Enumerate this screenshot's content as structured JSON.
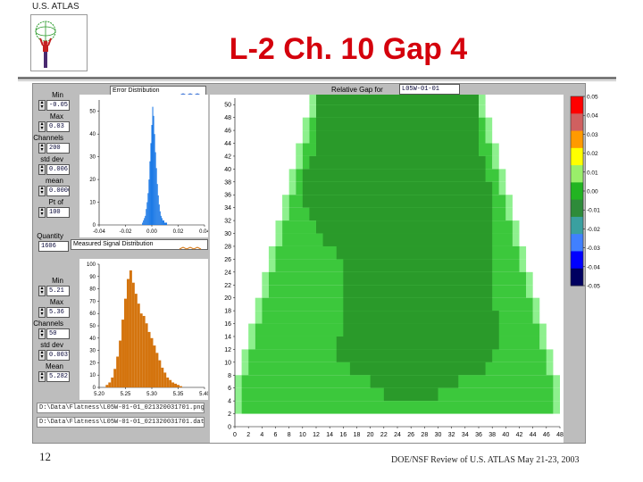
{
  "slide": {
    "logo_text": "U.S. ATLAS",
    "title": "L-2 Ch. 10 Gap 4",
    "page_number": "12",
    "footer": "DOE/NSF Review of U.S. ATLAS May 21-23, 2003"
  },
  "app": {
    "error_panel": {
      "legend": "Error Distribution",
      "controls": [
        {
          "label": "Min",
          "value": "-0.05"
        },
        {
          "label": "Max",
          "value": "0.03"
        },
        {
          "label": "Channels",
          "value": "200"
        },
        {
          "label": "std dev",
          "value": "0.006"
        },
        {
          "label": "mean",
          "value": "0.0000"
        },
        {
          "label": "Pt of Entry",
          "value": "100"
        }
      ]
    },
    "quantity": {
      "label": "Quantity",
      "value": "1606"
    },
    "signal_panel": {
      "legend": "Measured Signal Distribution",
      "controls": [
        {
          "label": "Min",
          "value": "5.21"
        },
        {
          "label": "Max",
          "value": "5.36"
        },
        {
          "label": "Channels",
          "value": "50"
        },
        {
          "label": "std dev",
          "value": "0.0037"
        },
        {
          "label": "Mean",
          "value": "5.282"
        }
      ]
    },
    "chamber": {
      "label": "Relative Gap for Chamber",
      "value": "L05W-01-01"
    },
    "paths": [
      "D:\\Data\\Flatness\\L05W-01-01_021320031701.png",
      "D:\\Data\\Flatness\\L05W-01-01_021320031701.dat"
    ]
  },
  "chart_data": [
    {
      "type": "bar",
      "title": "",
      "xlabel": "",
      "ylabel": "",
      "x_ticks": [
        "-0.04",
        "-0.02",
        "0.00",
        "0.02",
        "0.04"
      ],
      "y_ticks": [
        "0",
        "10",
        "20",
        "30",
        "40",
        "50"
      ],
      "xlim": [
        -0.04,
        0.04
      ],
      "ylim": [
        0,
        55
      ],
      "color": "#1a78e6",
      "categories": [
        -0.007,
        -0.0063,
        -0.0056,
        -0.0049,
        -0.0042,
        -0.0035,
        -0.0028,
        -0.0021,
        -0.0014,
        -0.0007,
        0.0,
        0.0007,
        0.0014,
        0.0021,
        0.0028,
        0.0035,
        0.0042,
        0.0049,
        0.0056,
        0.0063,
        0.007,
        0.0077,
        0.0084,
        0.0091,
        0.0098,
        0.0105,
        0.0112
      ],
      "values": [
        1,
        2,
        3,
        4,
        7,
        10,
        14,
        20,
        28,
        36,
        44,
        52,
        48,
        40,
        32,
        25,
        18,
        13,
        9,
        6,
        4,
        3,
        2,
        2,
        1,
        1,
        1
      ]
    },
    {
      "type": "bar",
      "title": "",
      "xlabel": "",
      "ylabel": "",
      "x_ticks": [
        "5.20",
        "5.25",
        "5.30",
        "5.35",
        "5.40"
      ],
      "y_ticks": [
        "0",
        "10",
        "20",
        "30",
        "40",
        "50",
        "60",
        "70",
        "80",
        "90",
        "100"
      ],
      "xlim": [
        5.2,
        5.4
      ],
      "ylim": [
        0,
        100
      ],
      "color": "#d4740e",
      "categories": [
        5.215,
        5.22,
        5.225,
        5.23,
        5.235,
        5.24,
        5.245,
        5.25,
        5.255,
        5.26,
        5.265,
        5.27,
        5.275,
        5.28,
        5.285,
        5.29,
        5.295,
        5.3,
        5.305,
        5.31,
        5.315,
        5.32,
        5.325,
        5.33,
        5.335,
        5.34,
        5.345,
        5.35,
        5.355
      ],
      "values": [
        2,
        4,
        8,
        15,
        25,
        38,
        55,
        72,
        88,
        95,
        85,
        76,
        68,
        60,
        58,
        52,
        45,
        40,
        34,
        28,
        22,
        16,
        12,
        8,
        6,
        4,
        3,
        2,
        1
      ]
    },
    {
      "type": "heatmap",
      "title": "",
      "xlabel": "",
      "ylabel": "",
      "x_ticks": [
        "0",
        "2",
        "4",
        "6",
        "8",
        "10",
        "12",
        "14",
        "16",
        "18",
        "20",
        "22",
        "24",
        "26",
        "28",
        "30",
        "32",
        "34",
        "36",
        "38",
        "40",
        "42",
        "44",
        "46",
        "48"
      ],
      "y_ticks": [
        "0",
        "2",
        "4",
        "6",
        "8",
        "10",
        "12",
        "14",
        "16",
        "18",
        "20",
        "22",
        "24",
        "26",
        "28",
        "30",
        "32",
        "34",
        "36",
        "38",
        "40",
        "42",
        "44",
        "46",
        "48",
        "50"
      ],
      "xlim": [
        0,
        48
      ],
      "ylim": [
        0,
        51
      ],
      "colorbar_ticks": [
        "0.05",
        "0.04",
        "0.03",
        "0.02",
        "0.01",
        "0.00",
        "-0.01",
        "-0.02",
        "-0.03",
        "-0.04",
        "-0.05"
      ],
      "colorbar_colors": [
        "#ff0000",
        "#d06060",
        "#ff9a00",
        "#ffff00",
        "#9aef6a",
        "#22b422",
        "#2e8b3a",
        "#3aa0a0",
        "#4080ff",
        "#0000ff",
        "#000060"
      ],
      "rows": [
        {
          "y": 50,
          "xmin": 12,
          "xmax": 36,
          "dark_min": 12,
          "dark_max": 36
        },
        {
          "y": 48,
          "xmin": 12,
          "xmax": 36,
          "dark_min": 12,
          "dark_max": 36
        },
        {
          "y": 46,
          "xmin": 11,
          "xmax": 37,
          "dark_min": 12,
          "dark_max": 36
        },
        {
          "y": 44,
          "xmin": 11,
          "xmax": 37,
          "dark_min": 12,
          "dark_max": 36
        },
        {
          "y": 42,
          "xmin": 10,
          "xmax": 38,
          "dark_min": 12,
          "dark_max": 36
        },
        {
          "y": 40,
          "xmin": 10,
          "xmax": 38,
          "dark_min": 11,
          "dark_max": 37
        },
        {
          "y": 38,
          "xmin": 9,
          "xmax": 39,
          "dark_min": 10,
          "dark_max": 37
        },
        {
          "y": 36,
          "xmin": 9,
          "xmax": 39,
          "dark_min": 10,
          "dark_max": 38
        },
        {
          "y": 34,
          "xmin": 8,
          "xmax": 40,
          "dark_min": 10,
          "dark_max": 38
        },
        {
          "y": 32,
          "xmin": 8,
          "xmax": 40,
          "dark_min": 11,
          "dark_max": 38
        },
        {
          "y": 30,
          "xmin": 7,
          "xmax": 41,
          "dark_min": 12,
          "dark_max": 38
        },
        {
          "y": 28,
          "xmin": 7,
          "xmax": 41,
          "dark_min": 13,
          "dark_max": 38
        },
        {
          "y": 26,
          "xmin": 6,
          "xmax": 42,
          "dark_min": 15,
          "dark_max": 38
        },
        {
          "y": 24,
          "xmin": 6,
          "xmax": 42,
          "dark_min": 16,
          "dark_max": 38
        },
        {
          "y": 22,
          "xmin": 5,
          "xmax": 43,
          "dark_min": 16,
          "dark_max": 38
        },
        {
          "y": 20,
          "xmin": 5,
          "xmax": 43,
          "dark_min": 16,
          "dark_max": 38
        },
        {
          "y": 18,
          "xmin": 4,
          "xmax": 44,
          "dark_min": 16,
          "dark_max": 38
        },
        {
          "y": 16,
          "xmin": 4,
          "xmax": 44,
          "dark_min": 16,
          "dark_max": 39
        },
        {
          "y": 14,
          "xmin": 3,
          "xmax": 45,
          "dark_min": 16,
          "dark_max": 39
        },
        {
          "y": 12,
          "xmin": 3,
          "xmax": 45,
          "dark_min": 15,
          "dark_max": 39
        },
        {
          "y": 10,
          "xmin": 2,
          "xmax": 46,
          "dark_min": 15,
          "dark_max": 38
        },
        {
          "y": 8,
          "xmin": 2,
          "xmax": 46,
          "dark_min": 17,
          "dark_max": 37
        },
        {
          "y": 6,
          "xmin": 1,
          "xmax": 47,
          "dark_min": 20,
          "dark_max": 33
        },
        {
          "y": 4,
          "xmin": 1,
          "xmax": 47,
          "dark_min": 22,
          "dark_max": 30
        },
        {
          "y": 2,
          "xmin": 1,
          "xmax": 47,
          "dark_min": 99,
          "dark_max": -1
        }
      ]
    }
  ]
}
